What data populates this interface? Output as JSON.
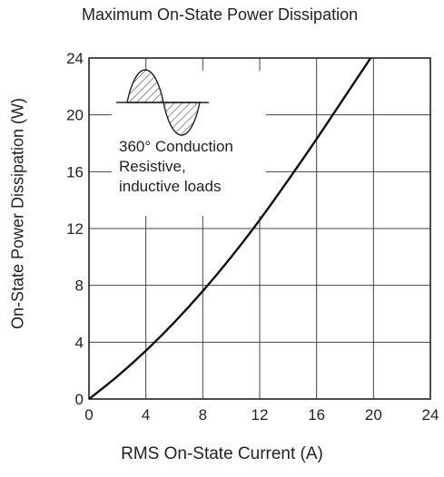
{
  "chart_data": {
    "type": "line",
    "title": "Maximum On-State Power Dissipation",
    "xlabel": "RMS On-State Current  (A)",
    "ylabel": "On-State Power Dissipation  (W)",
    "xlim": [
      0,
      24
    ],
    "ylim": [
      0,
      24
    ],
    "xticks": [
      "0",
      "4",
      "8",
      "12",
      "16",
      "20",
      "24"
    ],
    "yticks": [
      "0",
      "4",
      "8",
      "12",
      "16",
      "20",
      "24"
    ],
    "grid": true,
    "series": [
      {
        "x": [
          0,
          2,
          4,
          6,
          8,
          10,
          12,
          14,
          16,
          18,
          19.8
        ],
        "y": [
          0,
          1.6,
          3.4,
          5.4,
          7.6,
          10.0,
          12.6,
          15.4,
          18.3,
          21.3,
          24.0
        ]
      }
    ],
    "annotations": [
      "360° Conduction",
      "Resistive,",
      "inductive loads"
    ],
    "line_color": "#111111"
  }
}
